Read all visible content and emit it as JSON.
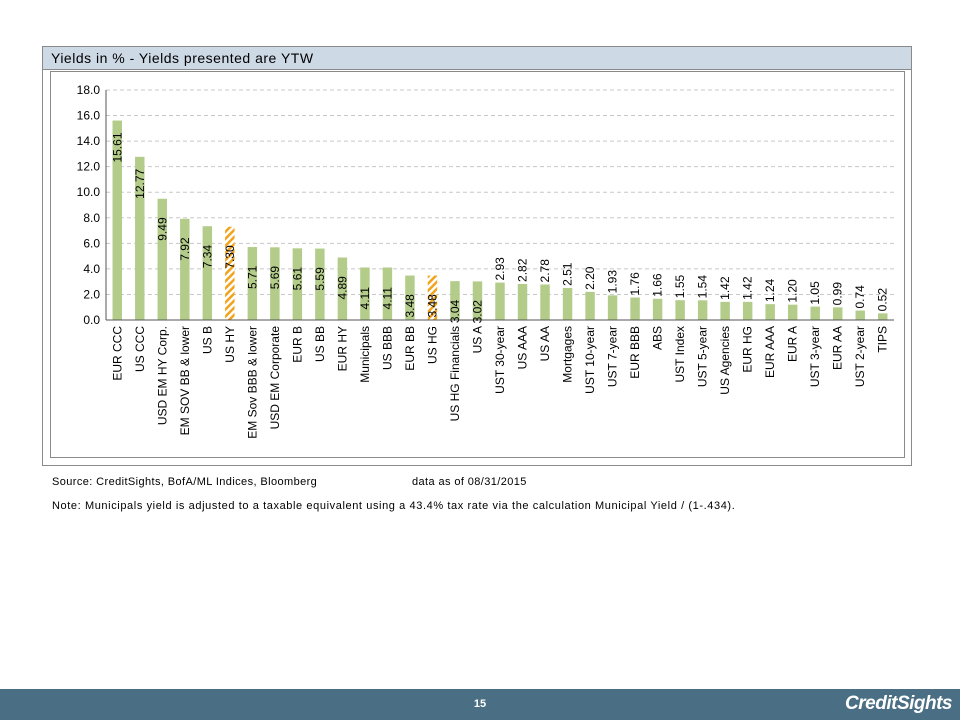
{
  "panel": {
    "title": "Yields in % - Yields presented are YTW"
  },
  "source": {
    "text": "Source: CreditSights, BofA/ML Indices, Bloomberg",
    "date": "data as of 08/31/2015"
  },
  "note": "Note: Municipals yield is adjusted to a taxable equivalent using a 43.4% tax rate via the calculation Municipal Yield / (1-.434).",
  "footer": {
    "page_number": "15",
    "brand": "CreditSights"
  },
  "colors": {
    "bar": "#b3cc8a",
    "highlight_bar": "#f2a31b",
    "gridline": "#c8c8c8",
    "footer": "#4a6f84",
    "title_bar": "#ced9e6"
  },
  "chart_data": {
    "type": "bar",
    "title": "",
    "xlabel": "",
    "ylabel": "",
    "ylim": [
      0,
      18
    ],
    "yticks": [
      "0.0",
      "2.0",
      "4.0",
      "6.0",
      "8.0",
      "10.0",
      "12.0",
      "14.0",
      "16.0",
      "18.0"
    ],
    "grid": true,
    "categories": [
      "EUR CCC",
      "US CCC",
      "USD EM HY Corp.",
      "EM SOV BB & lower",
      "US B",
      "US HY",
      "EM Sov BBB & lower",
      "USD EM Corporate",
      "EUR B",
      "US BB",
      "EUR HY",
      "Municipals",
      "US BBB",
      "EUR BB",
      "US HG",
      "US HG Financials",
      "US A",
      "UST 30-year",
      "US AAA",
      "US AA",
      "Mortgages",
      "UST 10-year",
      "UST 7-year",
      "EUR BBB",
      "ABS",
      "UST Index",
      "UST 5-year",
      "US Agencies",
      "EUR HG",
      "EUR AAA",
      "EUR A",
      "UST 3-year",
      "EUR AA",
      "UST 2-year",
      "TIPS"
    ],
    "values": [
      15.61,
      12.77,
      9.49,
      7.92,
      7.34,
      7.3,
      5.71,
      5.69,
      5.61,
      5.59,
      4.89,
      4.11,
      4.11,
      3.48,
      3.48,
      3.04,
      3.02,
      2.93,
      2.82,
      2.78,
      2.51,
      2.2,
      1.93,
      1.76,
      1.66,
      1.55,
      1.54,
      1.42,
      1.42,
      1.24,
      1.2,
      1.05,
      0.99,
      0.74,
      0.52
    ],
    "labels": [
      "15.61",
      "12.77",
      "9.49",
      "7.92",
      "7.34",
      "7.30",
      "5.71",
      "5.69",
      "5.61",
      "5.59",
      "4.89",
      "4.11",
      "4.11",
      "3.48",
      "3.48",
      "3.04",
      "3.02",
      "2.93",
      "2.82",
      "2.78",
      "2.51",
      "2.20",
      "1.93",
      "1.76",
      "1.66",
      "1.55",
      "1.54",
      "1.42",
      "1.42",
      "1.24",
      "1.20",
      "1.05",
      "0.99",
      "0.74",
      "0.52"
    ],
    "highlighted": [
      "US HY",
      "US HG"
    ]
  }
}
